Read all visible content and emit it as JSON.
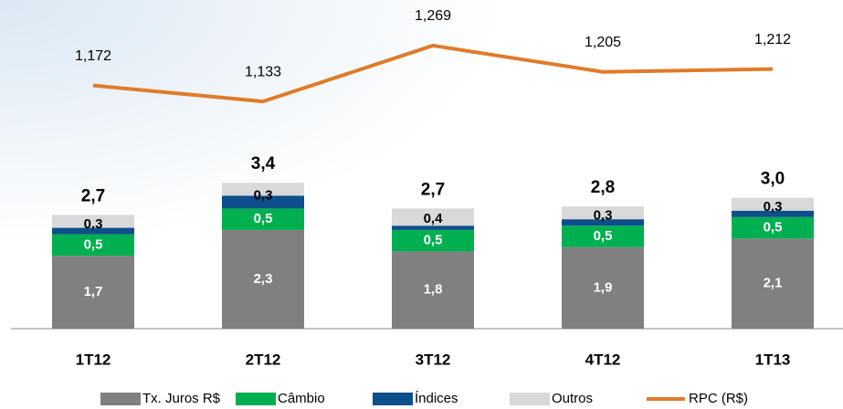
{
  "chart_data": {
    "type": "bar",
    "stacked": true,
    "categories": [
      "1T12",
      "2T12",
      "3T12",
      "4T12",
      "1T13"
    ],
    "series": [
      {
        "name": "Tx. Juros R$",
        "color": "#808080",
        "values": [
          1.7,
          2.3,
          1.8,
          1.9,
          2.1
        ],
        "value_labels": [
          "1,7",
          "2,3",
          "1,8",
          "1,9",
          "2,1"
        ]
      },
      {
        "name": "Câmbio",
        "color": "#00b050",
        "values": [
          0.5,
          0.5,
          0.5,
          0.5,
          0.5
        ],
        "value_labels": [
          "0,5",
          "0,5",
          "0,5",
          "0,5",
          "0,5"
        ]
      },
      {
        "name": "Índices",
        "color": "#0d4f8b",
        "values": [
          0.15,
          0.3,
          0.1,
          0.15,
          0.15
        ]
      },
      {
        "name": "Outros",
        "color": "#d9d9d9",
        "values": [
          0.3,
          0.3,
          0.4,
          0.3,
          0.3
        ],
        "value_labels": [
          "0,3",
          "0,3",
          "0,4",
          "0,3",
          "0,3"
        ]
      },
      {
        "name": "RPC (R$)",
        "color": "#e07b2a",
        "type": "line",
        "axis": "y2",
        "values": [
          1172,
          1133,
          1269,
          1205,
          1212
        ],
        "value_labels": [
          "1,172",
          "1,133",
          "1,269",
          "1,205",
          "1,212"
        ]
      }
    ],
    "totals": {
      "values": [
        2.7,
        3.4,
        2.7,
        2.8,
        3.0
      ],
      "value_labels": [
        "2,7",
        "3,4",
        "2,7",
        "2,8",
        "3,0"
      ]
    },
    "ylim": [
      0,
      4
    ],
    "y2lim": [
      1000,
      1300
    ]
  }
}
